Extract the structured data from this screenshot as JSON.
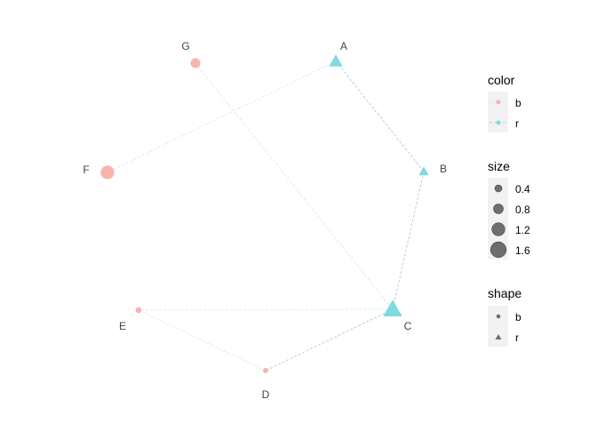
{
  "nodes": [
    {
      "id": "A",
      "color": "r",
      "shape": "r",
      "size": 1.0
    },
    {
      "id": "B",
      "color": "r",
      "shape": "r",
      "size": 0.6
    },
    {
      "id": "C",
      "color": "r",
      "shape": "r",
      "size": 1.6
    },
    {
      "id": "D",
      "color": "b",
      "shape": "b",
      "size": 0.2
    },
    {
      "id": "E",
      "color": "b",
      "shape": "b",
      "size": 0.3
    },
    {
      "id": "F",
      "color": "b",
      "shape": "b",
      "size": 1.3
    },
    {
      "id": "G",
      "color": "b",
      "shape": "b",
      "size": 0.8
    }
  ],
  "edges": [
    {
      "from": "A",
      "to": "B",
      "color": "r"
    },
    {
      "from": "A",
      "to": "F",
      "color": "b"
    },
    {
      "from": "G",
      "to": "C",
      "color": "b"
    },
    {
      "from": "B",
      "to": "C",
      "color": "r"
    },
    {
      "from": "C",
      "to": "E",
      "color": "b"
    },
    {
      "from": "C",
      "to": "D",
      "color": "r"
    },
    {
      "from": "D",
      "to": "E",
      "color": "b"
    }
  ],
  "colors": {
    "b": "#f8b4ae",
    "r": "#80dade",
    "edge_r": "#a9d3e3",
    "edge_b": "#dbeaf2"
  },
  "legend": {
    "color": {
      "title": "color",
      "items": [
        "b",
        "r"
      ]
    },
    "size": {
      "title": "size",
      "items": [
        "0.4",
        "0.8",
        "1.2",
        "1.6"
      ]
    },
    "shape": {
      "title": "shape",
      "items": [
        "b",
        "r"
      ]
    }
  }
}
